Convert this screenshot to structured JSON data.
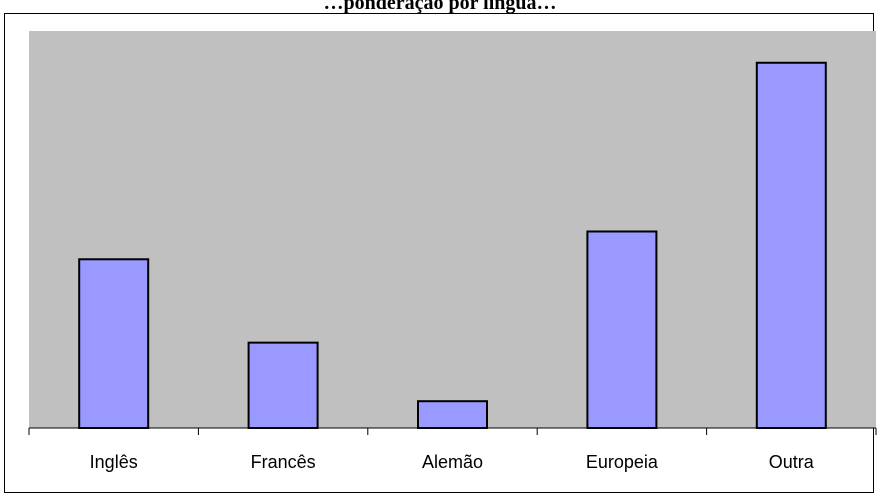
{
  "chart_data": {
    "type": "bar",
    "title": "…ponderação por língua…",
    "categories": [
      "Inglês",
      "Francês",
      "Alemão",
      "Europeia",
      "Outra"
    ],
    "values": [
      170,
      86,
      27,
      198,
      368
    ],
    "xlabel": "",
    "ylabel": "",
    "ylim": [
      0,
      400
    ],
    "grid": false,
    "legend": "none"
  },
  "colors": {
    "plot_area": "#c0c0c0",
    "bar_fill": "#9999ff",
    "bar_stroke": "#000000",
    "axis": "#000000",
    "frame_background": "#ffffff"
  }
}
